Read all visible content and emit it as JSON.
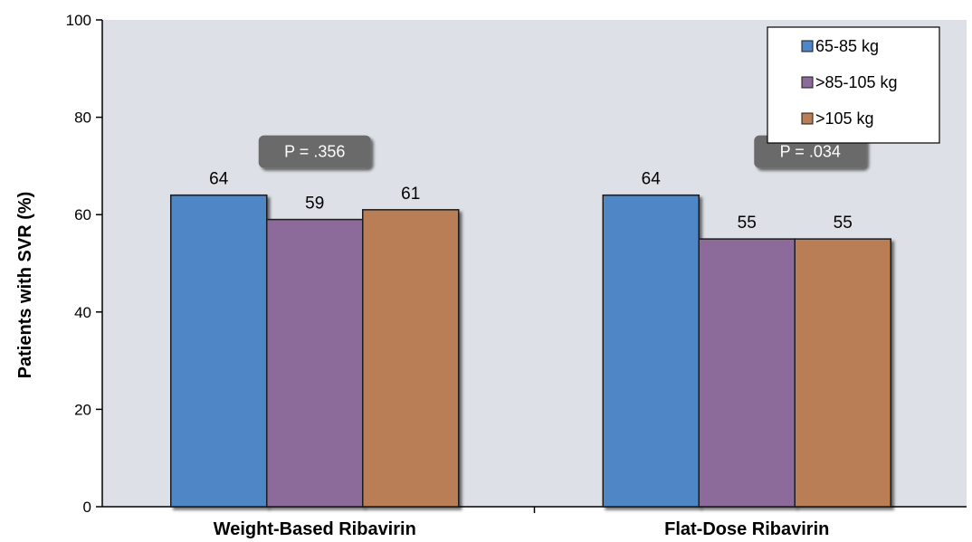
{
  "chart_data": {
    "type": "bar",
    "categories": [
      "Weight-Based Ribavirin",
      "Flat-Dose Ribavirin"
    ],
    "series": [
      {
        "name": "65-85 kg",
        "values": [
          64,
          64
        ],
        "color": "#4f86c6"
      },
      {
        "name": ">85-105 kg",
        "values": [
          59,
          55
        ],
        "color": "#8c6a9a"
      },
      {
        "name": ">105 kg",
        "values": [
          61,
          55
        ],
        "color": "#b97e55"
      }
    ],
    "ylabel": "Patients with SVR (%)",
    "ylim": [
      0,
      100
    ],
    "yticks": [
      0,
      20,
      40,
      60,
      80,
      100
    ],
    "legend_position": "top-right",
    "grid": false,
    "plot_background": "#dde0e6",
    "annotations": [
      {
        "text": "P = .356",
        "category": "Weight-Based Ribavirin"
      },
      {
        "text": "P = .034",
        "category": "Flat-Dose Ribavirin"
      }
    ]
  }
}
